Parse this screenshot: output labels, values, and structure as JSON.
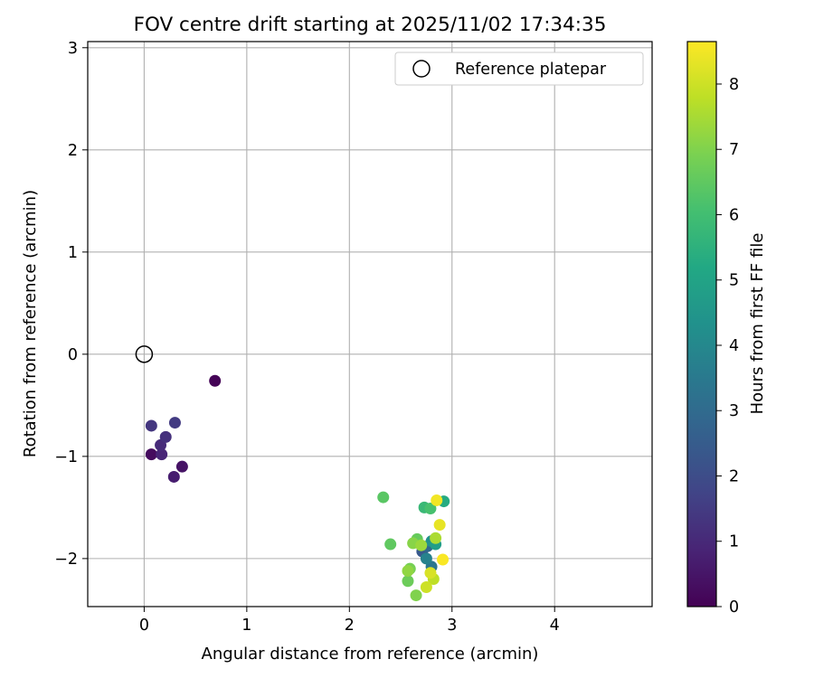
{
  "chart_data": {
    "type": "scatter",
    "title": "FOV centre drift starting at 2025/11/02 17:34:35",
    "xlabel": "Angular distance from reference (arcmin)",
    "ylabel": "Rotation from reference (arcmin)",
    "xlim": [
      -0.55,
      4.95
    ],
    "ylim": [
      -2.47,
      3.06
    ],
    "xticks": [
      0,
      1,
      2,
      3,
      4
    ],
    "yticks": [
      -2,
      -1,
      0,
      1,
      2,
      3
    ],
    "grid": true,
    "legend": {
      "position": "top-right",
      "entries": [
        {
          "label": "Reference platepar",
          "marker": "hollow-circle"
        }
      ]
    },
    "reference_point": {
      "x": 0,
      "y": 0,
      "label": "Reference platepar"
    },
    "colorbar": {
      "label": "Hours from first FF file",
      "min": 0,
      "max": 8.65,
      "ticks": [
        0,
        1,
        2,
        3,
        4,
        5,
        6,
        7,
        8
      ],
      "colormap": "viridis"
    },
    "points": [
      {
        "x": 0.69,
        "y": -0.26,
        "hours": 0.05
      },
      {
        "x": 0.07,
        "y": -0.98,
        "hours": 0.25
      },
      {
        "x": 0.37,
        "y": -1.1,
        "hours": 0.45
      },
      {
        "x": 0.29,
        "y": -1.2,
        "hours": 0.7
      },
      {
        "x": 0.17,
        "y": -0.98,
        "hours": 0.9
      },
      {
        "x": 0.16,
        "y": -0.89,
        "hours": 1.05
      },
      {
        "x": 0.21,
        "y": -0.81,
        "hours": 1.2
      },
      {
        "x": 0.07,
        "y": -0.7,
        "hours": 1.35
      },
      {
        "x": 0.3,
        "y": -0.67,
        "hours": 1.5
      },
      {
        "x": 2.71,
        "y": -1.93,
        "hours": 2.4
      },
      {
        "x": 2.76,
        "y": -1.88,
        "hours": 2.9
      },
      {
        "x": 2.8,
        "y": -2.08,
        "hours": 3.4
      },
      {
        "x": 2.75,
        "y": -2.0,
        "hours": 3.8
      },
      {
        "x": 2.8,
        "y": -1.83,
        "hours": 4.3
      },
      {
        "x": 2.84,
        "y": -1.86,
        "hours": 4.8
      },
      {
        "x": 2.92,
        "y": -1.44,
        "hours": 5.3
      },
      {
        "x": 2.73,
        "y": -1.5,
        "hours": 5.8
      },
      {
        "x": 2.79,
        "y": -1.51,
        "hours": 6.1
      },
      {
        "x": 2.33,
        "y": -1.4,
        "hours": 6.4
      },
      {
        "x": 2.4,
        "y": -1.86,
        "hours": 6.5
      },
      {
        "x": 2.66,
        "y": -1.81,
        "hours": 6.6
      },
      {
        "x": 2.57,
        "y": -2.22,
        "hours": 6.7
      },
      {
        "x": 2.59,
        "y": -2.1,
        "hours": 6.85
      },
      {
        "x": 2.65,
        "y": -2.36,
        "hours": 7.0
      },
      {
        "x": 2.62,
        "y": -1.85,
        "hours": 7.1
      },
      {
        "x": 2.57,
        "y": -2.12,
        "hours": 7.2
      },
      {
        "x": 2.7,
        "y": -1.87,
        "hours": 7.35
      },
      {
        "x": 2.84,
        "y": -1.8,
        "hours": 7.55
      },
      {
        "x": 2.82,
        "y": -2.2,
        "hours": 7.8
      },
      {
        "x": 2.75,
        "y": -2.28,
        "hours": 8.0
      },
      {
        "x": 2.79,
        "y": -2.14,
        "hours": 8.15
      },
      {
        "x": 2.88,
        "y": -1.67,
        "hours": 8.35
      },
      {
        "x": 2.85,
        "y": -1.43,
        "hours": 8.5
      },
      {
        "x": 2.91,
        "y": -2.01,
        "hours": 8.6
      }
    ]
  }
}
